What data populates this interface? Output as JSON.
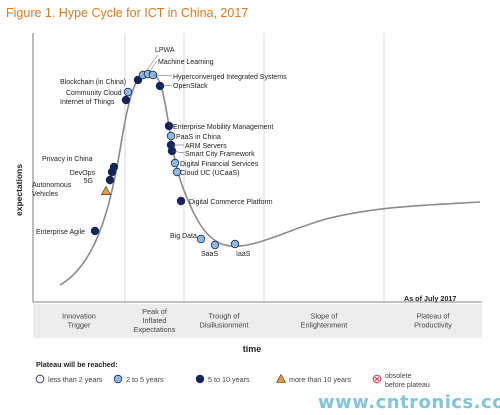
{
  "title": "Figure 1. Hype Cycle for ICT in China, 2017",
  "watermark": "www.cntronics.com",
  "chart_data": {
    "type": "scatter",
    "title": "Figure 1. Hype Cycle for ICT in China, 2017",
    "xlabel": "time",
    "ylabel": "expectations",
    "as_of": "As of July 2017",
    "phases": [
      [
        "Innovation",
        "Trigger"
      ],
      [
        "Peak of",
        "Inflated",
        "Expectations"
      ],
      [
        "Trough of",
        "Disillusionment"
      ],
      [
        "Slope of",
        "Enlightenment"
      ],
      [
        "Plateau of",
        "Productivity"
      ]
    ],
    "legend_title": "Plateau will be reached:",
    "legend": [
      {
        "label": "less than 2 years",
        "category": "lt2",
        "color": "#ffffff"
      },
      {
        "label": "2 to 5 years",
        "category": "2to5",
        "color": "#8fb8dd"
      },
      {
        "label": "5 to 10 years",
        "category": "5to10",
        "color": "#13245c"
      },
      {
        "label": "more than 10 years",
        "category": "gt10",
        "color": "#e89a3c"
      },
      {
        "label": "obsolete before plateau",
        "category": "obsolete",
        "color": "#d9363e"
      }
    ],
    "technologies": [
      {
        "name": "Enterprise Agile",
        "phase": "Innovation Trigger",
        "category": "5to10"
      },
      {
        "name": "Autonomous Vehicles",
        "phase": "Innovation Trigger",
        "category": "gt10"
      },
      {
        "name": "5G",
        "phase": "Innovation Trigger",
        "category": "5to10"
      },
      {
        "name": "DevOps",
        "phase": "Innovation Trigger",
        "category": "5to10"
      },
      {
        "name": "Privacy in China",
        "phase": "Innovation Trigger",
        "category": "5to10"
      },
      {
        "name": "Internet of Things",
        "phase": "Peak of Inflated Expectations",
        "category": "5to10"
      },
      {
        "name": "Community Cloud",
        "phase": "Peak of Inflated Expectations",
        "category": "2to5"
      },
      {
        "name": "Blockchain (in China)",
        "phase": "Peak of Inflated Expectations",
        "category": "5to10"
      },
      {
        "name": "LPWA",
        "phase": "Peak of Inflated Expectations",
        "category": "2to5"
      },
      {
        "name": "Machine Learning",
        "phase": "Peak of Inflated Expectations",
        "category": "2to5"
      },
      {
        "name": "Hyperconverged Integrated Systems",
        "phase": "Peak of Inflated Expectations",
        "category": "2to5"
      },
      {
        "name": "OpenStack",
        "phase": "Peak of Inflated Expectations",
        "category": "5to10"
      },
      {
        "name": "Enterprise Mobility Management",
        "phase": "Trough of Disillusionment",
        "category": "5to10"
      },
      {
        "name": "PaaS in China",
        "phase": "Trough of Disillusionment",
        "category": "2to5"
      },
      {
        "name": "ARM Servers",
        "phase": "Trough of Disillusionment",
        "category": "5to10"
      },
      {
        "name": "Smart City Framework",
        "phase": "Trough of Disillusionment",
        "category": "5to10"
      },
      {
        "name": "Digital Financial Services",
        "phase": "Trough of Disillusionment",
        "category": "2to5"
      },
      {
        "name": "Cloud UC (UCaaS)",
        "phase": "Trough of Disillusionment",
        "category": "2to5"
      },
      {
        "name": "Digital Commerce Platform",
        "phase": "Trough of Disillusionment",
        "category": "5to10"
      },
      {
        "name": "Big Data",
        "phase": "Trough of Disillusionment",
        "category": "2to5"
      },
      {
        "name": "SaaS",
        "phase": "Trough of Disillusionment",
        "category": "2to5"
      },
      {
        "name": "IaaS",
        "phase": "Trough of Disillusionment",
        "category": "2to5"
      }
    ]
  }
}
